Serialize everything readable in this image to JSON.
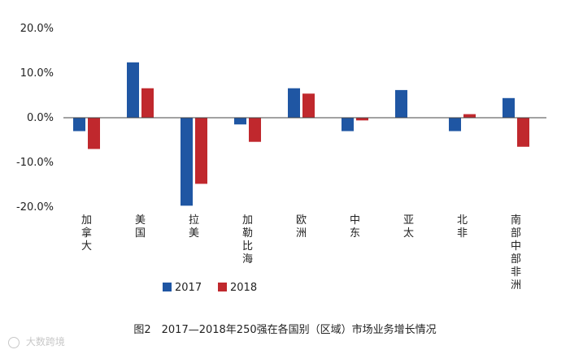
{
  "chart_data": {
    "type": "bar",
    "categories": [
      "加拿大",
      "美国",
      "拉美",
      "加勒比海",
      "欧洲",
      "中东",
      "亚太",
      "北非",
      "南部中部非洲"
    ],
    "series": [
      {
        "name": "2017",
        "values": [
          -3.0,
          12.4,
          -19.7,
          -1.5,
          6.6,
          -3.0,
          6.2,
          -3.0,
          4.4
        ],
        "color": "#1f56a3"
      },
      {
        "name": "2018",
        "values": [
          -7.0,
          6.6,
          -14.8,
          -5.4,
          5.4,
          -0.6,
          null,
          0.8,
          -6.5
        ],
        "color": "#c0282d"
      }
    ],
    "ylim": [
      -20,
      20
    ],
    "yticks": [
      "20.0%",
      "10.0%",
      "0.0%",
      "-10.0%",
      "-20.0%"
    ],
    "ytick_values": [
      20,
      10,
      0,
      -10,
      -20
    ],
    "grid": false,
    "legend": "bottom"
  },
  "caption": "图2　2017—2018年250强在各国别（区域）市场业务增长情况",
  "watermark": "大数跨境"
}
